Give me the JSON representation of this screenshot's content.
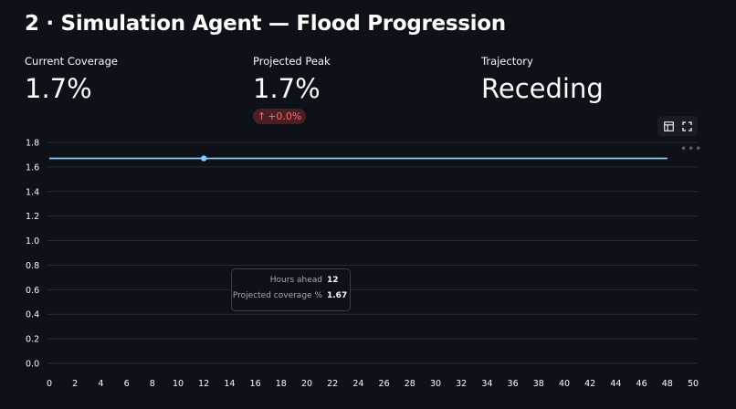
{
  "page": {
    "title": "2 · Simulation Agent — Flood Progression"
  },
  "metrics": [
    {
      "label": "Current Coverage",
      "value": "1.7%"
    },
    {
      "label": "Projected Peak",
      "value": "1.7%",
      "delta": "+0.0%",
      "delta_arrow": "↑"
    },
    {
      "label": "Trajectory",
      "value": "Receding"
    }
  ],
  "toolbar": {
    "icons": [
      "table-icon",
      "fullscreen-icon"
    ],
    "more": "•••"
  },
  "tooltip": {
    "rows": [
      {
        "key": "Hours ahead",
        "value": "12"
      },
      {
        "key": "Projected coverage %",
        "value": "1.67"
      }
    ]
  },
  "colors": {
    "background": "#0e1117",
    "line": "#83c9ff",
    "grid": "#262a33",
    "tick": "#fafafa",
    "delta_bg": "#4a1f24",
    "delta_fg": "#ff6c6c"
  },
  "chart_data": {
    "type": "line",
    "x": [
      0,
      48
    ],
    "y": [
      1.67,
      1.67
    ],
    "hover_point": {
      "x": 12,
      "y": 1.67
    },
    "xlim": [
      0,
      50
    ],
    "ylim": [
      0,
      1.8
    ],
    "xticks": [
      0,
      2,
      4,
      6,
      8,
      10,
      12,
      14,
      16,
      18,
      20,
      22,
      24,
      26,
      28,
      30,
      32,
      34,
      36,
      38,
      40,
      42,
      44,
      46,
      48,
      50
    ],
    "yticks": [
      "0.0",
      "0.2",
      "0.4",
      "0.6",
      "0.8",
      "1.0",
      "1.2",
      "1.4",
      "1.6",
      "1.8"
    ],
    "grid": true,
    "title": "",
    "xlabel": "",
    "ylabel": ""
  }
}
